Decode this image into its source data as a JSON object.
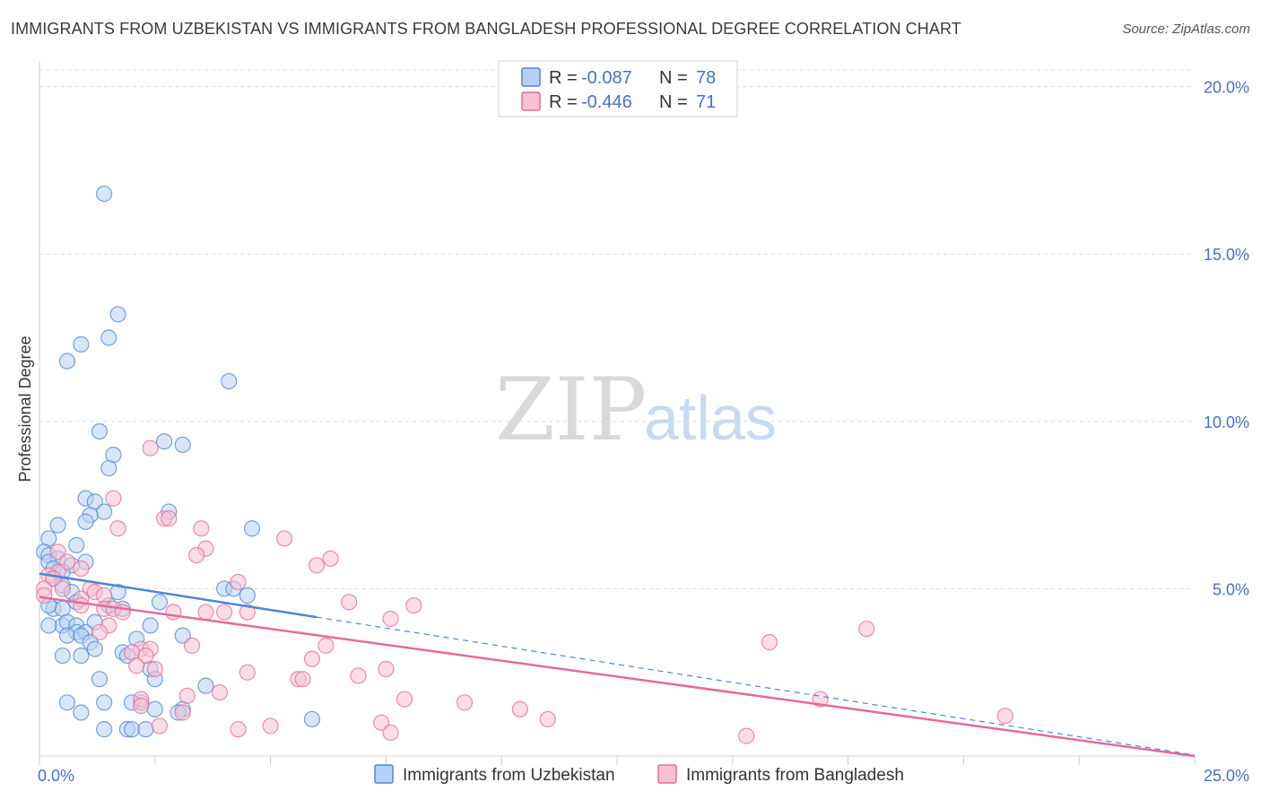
{
  "title": "IMMIGRANTS FROM UZBEKISTAN VS IMMIGRANTS FROM BANGLADESH PROFESSIONAL DEGREE CORRELATION CHART",
  "source": "Source: ZipAtlas.com",
  "watermark": {
    "zip": "ZIP",
    "atlas": "atlas"
  },
  "stats": [
    {
      "r_label": "R =",
      "r_value": "-0.087",
      "n_label": "N =",
      "n_value": "78",
      "color": "#4a86d8",
      "fill": "#b8d1f3"
    },
    {
      "r_label": "R =",
      "r_value": "-0.446",
      "n_label": "N =",
      "n_value": "71",
      "color": "#e56a97",
      "fill": "#f7c1d3"
    }
  ],
  "chart_data": {
    "type": "scatter",
    "xlabel": "",
    "ylabel": "Professional Degree",
    "xlim": [
      0,
      25
    ],
    "ylim": [
      0,
      20.5
    ],
    "x_tick_labels": [
      {
        "value": 0,
        "label": "0.0%"
      },
      {
        "value": 25,
        "label": "25.0%"
      }
    ],
    "y_tick_labels": [
      {
        "value": 5,
        "label": "5.0%"
      },
      {
        "value": 10,
        "label": "10.0%"
      },
      {
        "value": 15,
        "label": "15.0%"
      },
      {
        "value": 20,
        "label": "20.0%"
      }
    ],
    "grid": true,
    "legend_position": "bottom-center",
    "series": [
      {
        "name": "Immigrants from Uzbekistan",
        "color": "#4a86d8",
        "fill": "#b8d1f3",
        "trend": {
          "x": [
            0,
            6
          ],
          "y": [
            5.45,
            4.15
          ],
          "dashed_to_x": 25
        },
        "points": [
          [
            1.4,
            16.8
          ],
          [
            1.7,
            13.2
          ],
          [
            1.5,
            12.5
          ],
          [
            0.9,
            12.3
          ],
          [
            0.6,
            11.8
          ],
          [
            4.1,
            11.2
          ],
          [
            1.3,
            9.7
          ],
          [
            2.7,
            9.4
          ],
          [
            3.1,
            9.3
          ],
          [
            1.6,
            9.0
          ],
          [
            1.5,
            8.6
          ],
          [
            1.0,
            7.7
          ],
          [
            1.2,
            7.6
          ],
          [
            2.8,
            7.3
          ],
          [
            1.4,
            7.3
          ],
          [
            1.1,
            7.2
          ],
          [
            1.0,
            7.0
          ],
          [
            0.4,
            6.9
          ],
          [
            4.6,
            6.8
          ],
          [
            0.2,
            6.5
          ],
          [
            0.8,
            6.3
          ],
          [
            0.1,
            6.1
          ],
          [
            0.2,
            6.0
          ],
          [
            0.4,
            5.9
          ],
          [
            0.2,
            5.8
          ],
          [
            1.0,
            5.8
          ],
          [
            0.7,
            5.7
          ],
          [
            0.3,
            5.6
          ],
          [
            0.5,
            5.5
          ],
          [
            0.3,
            5.3
          ],
          [
            0.5,
            5.1
          ],
          [
            1.7,
            4.9
          ],
          [
            4.0,
            5.0
          ],
          [
            4.2,
            5.0
          ],
          [
            0.7,
            4.9
          ],
          [
            2.6,
            4.6
          ],
          [
            0.8,
            4.6
          ],
          [
            4.5,
            4.8
          ],
          [
            0.3,
            4.4
          ],
          [
            1.5,
            4.5
          ],
          [
            0.5,
            4.4
          ],
          [
            0.2,
            4.5
          ],
          [
            1.8,
            4.4
          ],
          [
            1.2,
            4.0
          ],
          [
            0.5,
            3.9
          ],
          [
            0.6,
            4.0
          ],
          [
            0.2,
            3.9
          ],
          [
            0.8,
            3.9
          ],
          [
            2.4,
            3.9
          ],
          [
            0.8,
            3.7
          ],
          [
            1.0,
            3.7
          ],
          [
            0.6,
            3.6
          ],
          [
            3.1,
            3.6
          ],
          [
            0.9,
            3.6
          ],
          [
            2.1,
            3.5
          ],
          [
            1.1,
            3.4
          ],
          [
            1.2,
            3.2
          ],
          [
            1.8,
            3.1
          ],
          [
            1.9,
            3.0
          ],
          [
            0.9,
            3.0
          ],
          [
            0.5,
            3.0
          ],
          [
            2.4,
            2.6
          ],
          [
            1.3,
            2.3
          ],
          [
            2.5,
            2.3
          ],
          [
            3.6,
            2.1
          ],
          [
            2.2,
            1.6
          ],
          [
            0.6,
            1.6
          ],
          [
            1.4,
            1.6
          ],
          [
            2.0,
            1.6
          ],
          [
            2.5,
            1.4
          ],
          [
            3.1,
            1.4
          ],
          [
            0.9,
            1.3
          ],
          [
            5.9,
            1.1
          ],
          [
            1.4,
            0.8
          ],
          [
            1.9,
            0.8
          ],
          [
            2.0,
            0.8
          ],
          [
            2.3,
            0.8
          ],
          [
            3.0,
            1.3
          ]
        ]
      },
      {
        "name": "Immigrants from Bangladesh",
        "color": "#e56a97",
        "fill": "#f7c1d3",
        "trend": {
          "x": [
            0,
            25
          ],
          "y": [
            4.75,
            0.0
          ]
        },
        "points": [
          [
            2.4,
            9.2
          ],
          [
            1.6,
            7.7
          ],
          [
            2.7,
            7.1
          ],
          [
            2.8,
            7.1
          ],
          [
            1.7,
            6.8
          ],
          [
            3.5,
            6.8
          ],
          [
            5.3,
            6.5
          ],
          [
            3.6,
            6.2
          ],
          [
            3.4,
            6.0
          ],
          [
            0.4,
            6.1
          ],
          [
            6.3,
            5.9
          ],
          [
            0.6,
            5.8
          ],
          [
            6.0,
            5.7
          ],
          [
            0.9,
            5.6
          ],
          [
            0.4,
            5.5
          ],
          [
            0.2,
            5.4
          ],
          [
            0.3,
            5.3
          ],
          [
            4.3,
            5.2
          ],
          [
            0.1,
            5.0
          ],
          [
            0.5,
            5.0
          ],
          [
            1.1,
            5.0
          ],
          [
            1.2,
            4.9
          ],
          [
            1.4,
            4.8
          ],
          [
            0.1,
            4.8
          ],
          [
            0.9,
            4.7
          ],
          [
            6.7,
            4.6
          ],
          [
            8.1,
            4.5
          ],
          [
            0.9,
            4.5
          ],
          [
            1.4,
            4.4
          ],
          [
            1.6,
            4.4
          ],
          [
            1.8,
            4.3
          ],
          [
            2.9,
            4.3
          ],
          [
            3.6,
            4.3
          ],
          [
            4.0,
            4.3
          ],
          [
            4.5,
            4.3
          ],
          [
            7.6,
            4.1
          ],
          [
            1.5,
            3.9
          ],
          [
            1.3,
            3.7
          ],
          [
            17.9,
            3.8
          ],
          [
            15.8,
            3.4
          ],
          [
            2.2,
            3.2
          ],
          [
            2.4,
            3.2
          ],
          [
            3.3,
            3.3
          ],
          [
            2.0,
            3.1
          ],
          [
            6.2,
            3.3
          ],
          [
            2.3,
            3.0
          ],
          [
            5.9,
            2.9
          ],
          [
            2.1,
            2.7
          ],
          [
            2.5,
            2.6
          ],
          [
            7.5,
            2.6
          ],
          [
            4.5,
            2.5
          ],
          [
            6.9,
            2.4
          ],
          [
            5.6,
            2.3
          ],
          [
            5.7,
            2.3
          ],
          [
            3.9,
            1.9
          ],
          [
            3.2,
            1.8
          ],
          [
            7.9,
            1.7
          ],
          [
            2.2,
            1.7
          ],
          [
            16.9,
            1.7
          ],
          [
            9.2,
            1.6
          ],
          [
            10.4,
            1.4
          ],
          [
            2.2,
            1.5
          ],
          [
            3.1,
            1.3
          ],
          [
            20.9,
            1.2
          ],
          [
            11.0,
            1.1
          ],
          [
            7.4,
            1.0
          ],
          [
            5.0,
            0.9
          ],
          [
            2.6,
            0.9
          ],
          [
            4.3,
            0.8
          ],
          [
            7.6,
            0.7
          ],
          [
            15.3,
            0.6
          ]
        ]
      }
    ]
  }
}
